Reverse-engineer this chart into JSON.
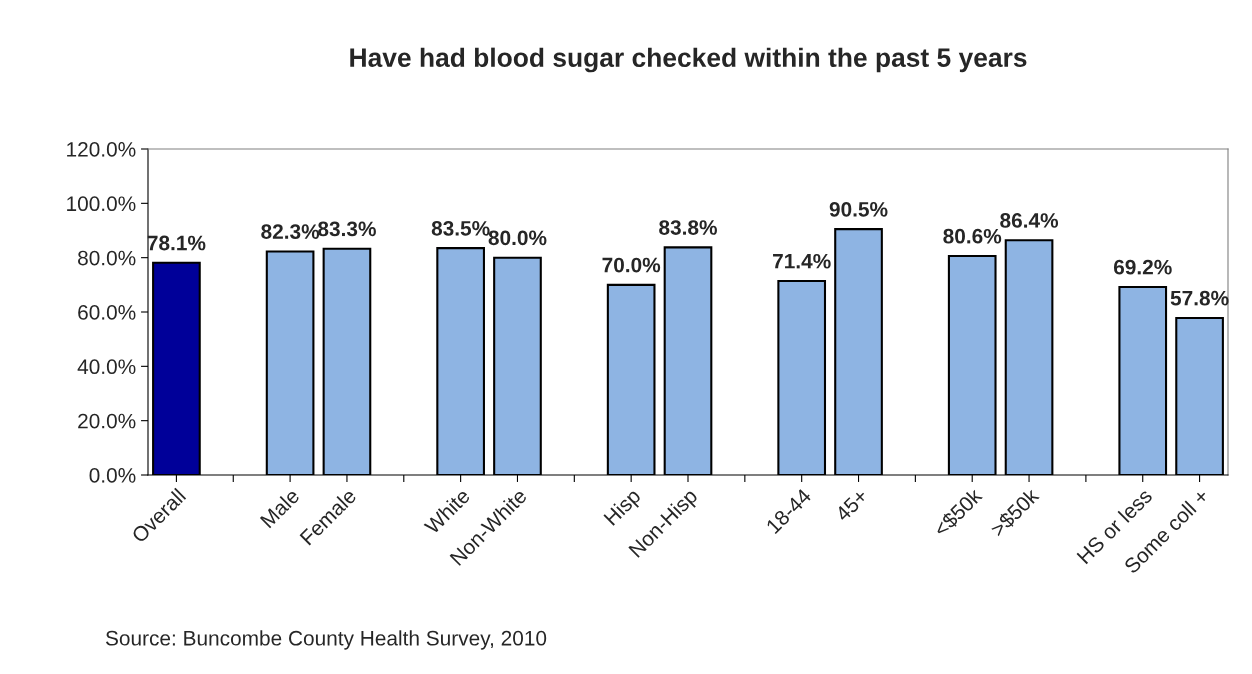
{
  "chart_data": {
    "type": "bar",
    "title": "Have had blood sugar checked within the past 5 years",
    "categories": [
      "Overall",
      null,
      "Male",
      "Female",
      null,
      "White",
      "Non-White",
      null,
      "Hisp",
      "Non-Hisp",
      null,
      "18-44",
      "45+",
      null,
      "<$50k",
      ">$50k",
      null,
      "HS or less",
      "Some coll +"
    ],
    "values": [
      78.1,
      null,
      82.3,
      83.3,
      null,
      83.5,
      80.0,
      null,
      70.0,
      83.8,
      null,
      71.4,
      90.5,
      null,
      80.6,
      86.4,
      null,
      69.2,
      57.8
    ],
    "colors": [
      "#000099",
      null,
      "#8eb4e3",
      "#8eb4e3",
      null,
      "#8eb4e3",
      "#8eb4e3",
      null,
      "#8eb4e3",
      "#8eb4e3",
      null,
      "#8eb4e3",
      "#8eb4e3",
      null,
      "#8eb4e3",
      "#8eb4e3",
      null,
      "#8eb4e3",
      "#8eb4e3"
    ],
    "value_labels": [
      "78.1%",
      null,
      "82.3%",
      "83.3%",
      null,
      "83.5%",
      "80.0%",
      null,
      "70.0%",
      "83.8%",
      null,
      "71.4%",
      "90.5%",
      null,
      "80.6%",
      "86.4%",
      null,
      "69.2%",
      "57.8%"
    ],
    "ylim": [
      0,
      120
    ],
    "yticks": [
      {
        "value": 0,
        "label": "0.0%"
      },
      {
        "value": 20,
        "label": "20.0%"
      },
      {
        "value": 40,
        "label": "40.0%"
      },
      {
        "value": 60,
        "label": "60.0%"
      },
      {
        "value": 80,
        "label": "80.0%"
      },
      {
        "value": 100,
        "label": "100.0%"
      },
      {
        "value": 120,
        "label": "120.0%"
      }
    ],
    "grid": false,
    "legend": false,
    "annotations": [
      "Source: Buncombe County Health Survey, 2010"
    ]
  }
}
